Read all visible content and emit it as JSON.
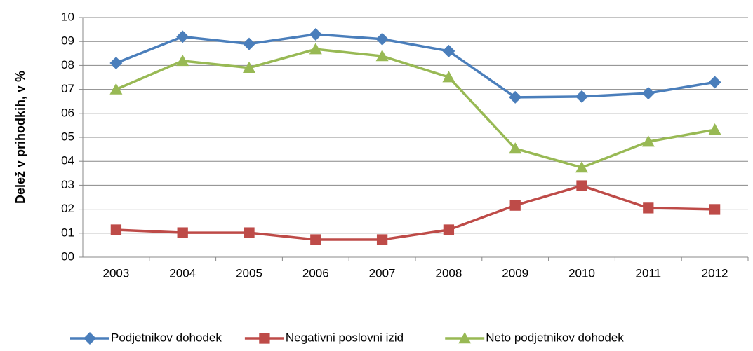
{
  "chart_data": {
    "type": "line",
    "ylabel": "Delež v prihodkih, v %",
    "categories": [
      "2003",
      "2004",
      "2005",
      "2006",
      "2007",
      "2008",
      "2009",
      "2010",
      "2011",
      "2012"
    ],
    "series": [
      {
        "name": "Podjetnikov dohodek",
        "color": "#4a7ebb",
        "marker": "diamond",
        "values": [
          8.1,
          9.2,
          8.9,
          9.3,
          9.1,
          8.6,
          6.67,
          6.7,
          6.84,
          7.3
        ]
      },
      {
        "name": "Negativni poslovni izid",
        "color": "#be4b48",
        "marker": "square",
        "values": [
          1.14,
          1.02,
          1.02,
          0.73,
          0.73,
          1.14,
          2.16,
          2.98,
          2.05,
          1.99
        ]
      },
      {
        "name": "Neto podjetnikov dohodek",
        "color": "#98b954",
        "marker": "triangle",
        "values": [
          7.0,
          8.19,
          7.9,
          8.68,
          8.39,
          7.51,
          4.53,
          3.74,
          4.82,
          5.32
        ]
      }
    ],
    "ylim": [
      0,
      10
    ],
    "yticks": [
      {
        "value": 0,
        "label": "00"
      },
      {
        "value": 1,
        "label": "01"
      },
      {
        "value": 2,
        "label": "02"
      },
      {
        "value": 3,
        "label": "03"
      },
      {
        "value": 4,
        "label": "04"
      },
      {
        "value": 5,
        "label": "05"
      },
      {
        "value": 6,
        "label": "06"
      },
      {
        "value": 7,
        "label": "07"
      },
      {
        "value": 8,
        "label": "08"
      },
      {
        "value": 9,
        "label": "09"
      },
      10
    ],
    "grid": true,
    "legend": "bottom"
  }
}
